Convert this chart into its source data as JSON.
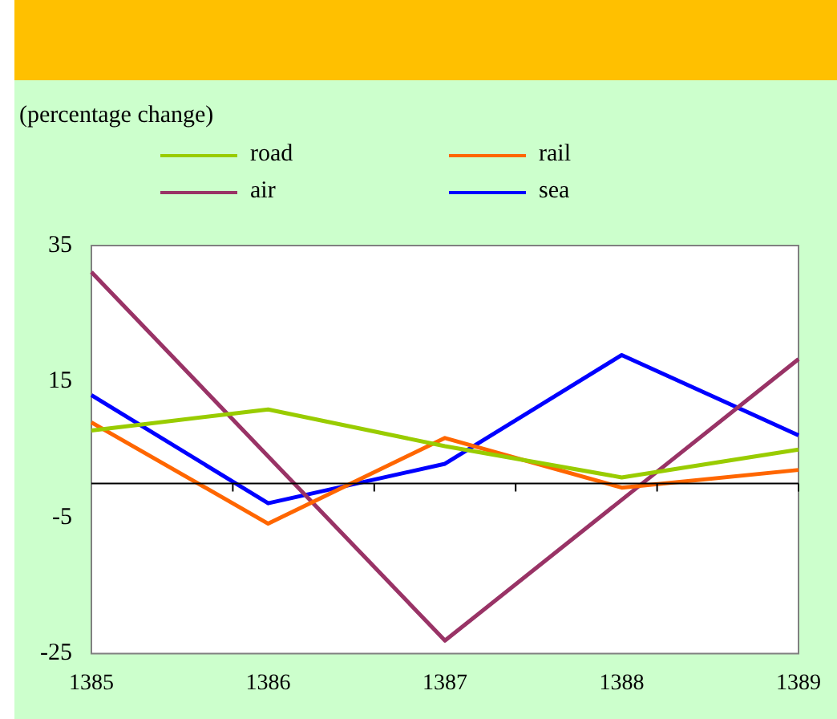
{
  "chart_data": {
    "type": "line",
    "ylabel": "(percentage change)",
    "categories": [
      "1385",
      "1386",
      "1387",
      "1388",
      "1389"
    ],
    "series": [
      {
        "name": "road",
        "color": "#99cc00",
        "values": [
          7.8,
          10.9,
          5.5,
          0.9,
          5.0
        ]
      },
      {
        "name": "rail",
        "color": "#ff6600",
        "values": [
          9.0,
          -5.9,
          6.7,
          -0.6,
          2.0
        ]
      },
      {
        "name": "air",
        "color": "#993366",
        "values": [
          31.1,
          4.0,
          -23.1,
          -2.4,
          18.3
        ]
      },
      {
        "name": "sea",
        "color": "#0000ff",
        "values": [
          13.0,
          -2.9,
          2.9,
          18.9,
          7.1
        ]
      }
    ],
    "ylim": [
      -25,
      35
    ],
    "yticks": [
      -25,
      -5,
      15,
      35
    ],
    "grid": false,
    "legend": "top",
    "marker": "none",
    "line_style": "solid"
  }
}
